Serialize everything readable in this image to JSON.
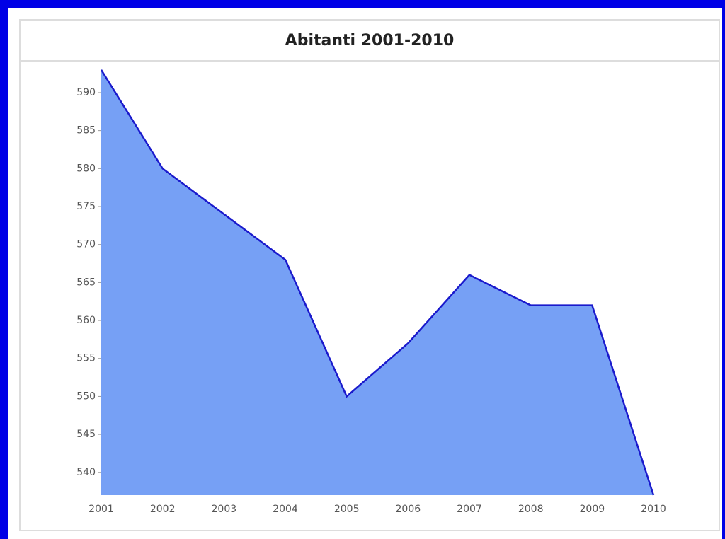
{
  "chart_data": {
    "type": "area",
    "title": "Abitanti 2001-2010",
    "categories": [
      "2001",
      "2002",
      "2003",
      "2004",
      "2005",
      "2006",
      "2007",
      "2008",
      "2009",
      "2010"
    ],
    "values": [
      593,
      580,
      574,
      568,
      550,
      557,
      566,
      562,
      562,
      537
    ],
    "color": "#76a0f5",
    "line_color": "#1a1acc",
    "ylim": [
      537,
      594
    ],
    "yticks": [
      540,
      545,
      550,
      555,
      560,
      565,
      570,
      575,
      580,
      585,
      590
    ]
  }
}
